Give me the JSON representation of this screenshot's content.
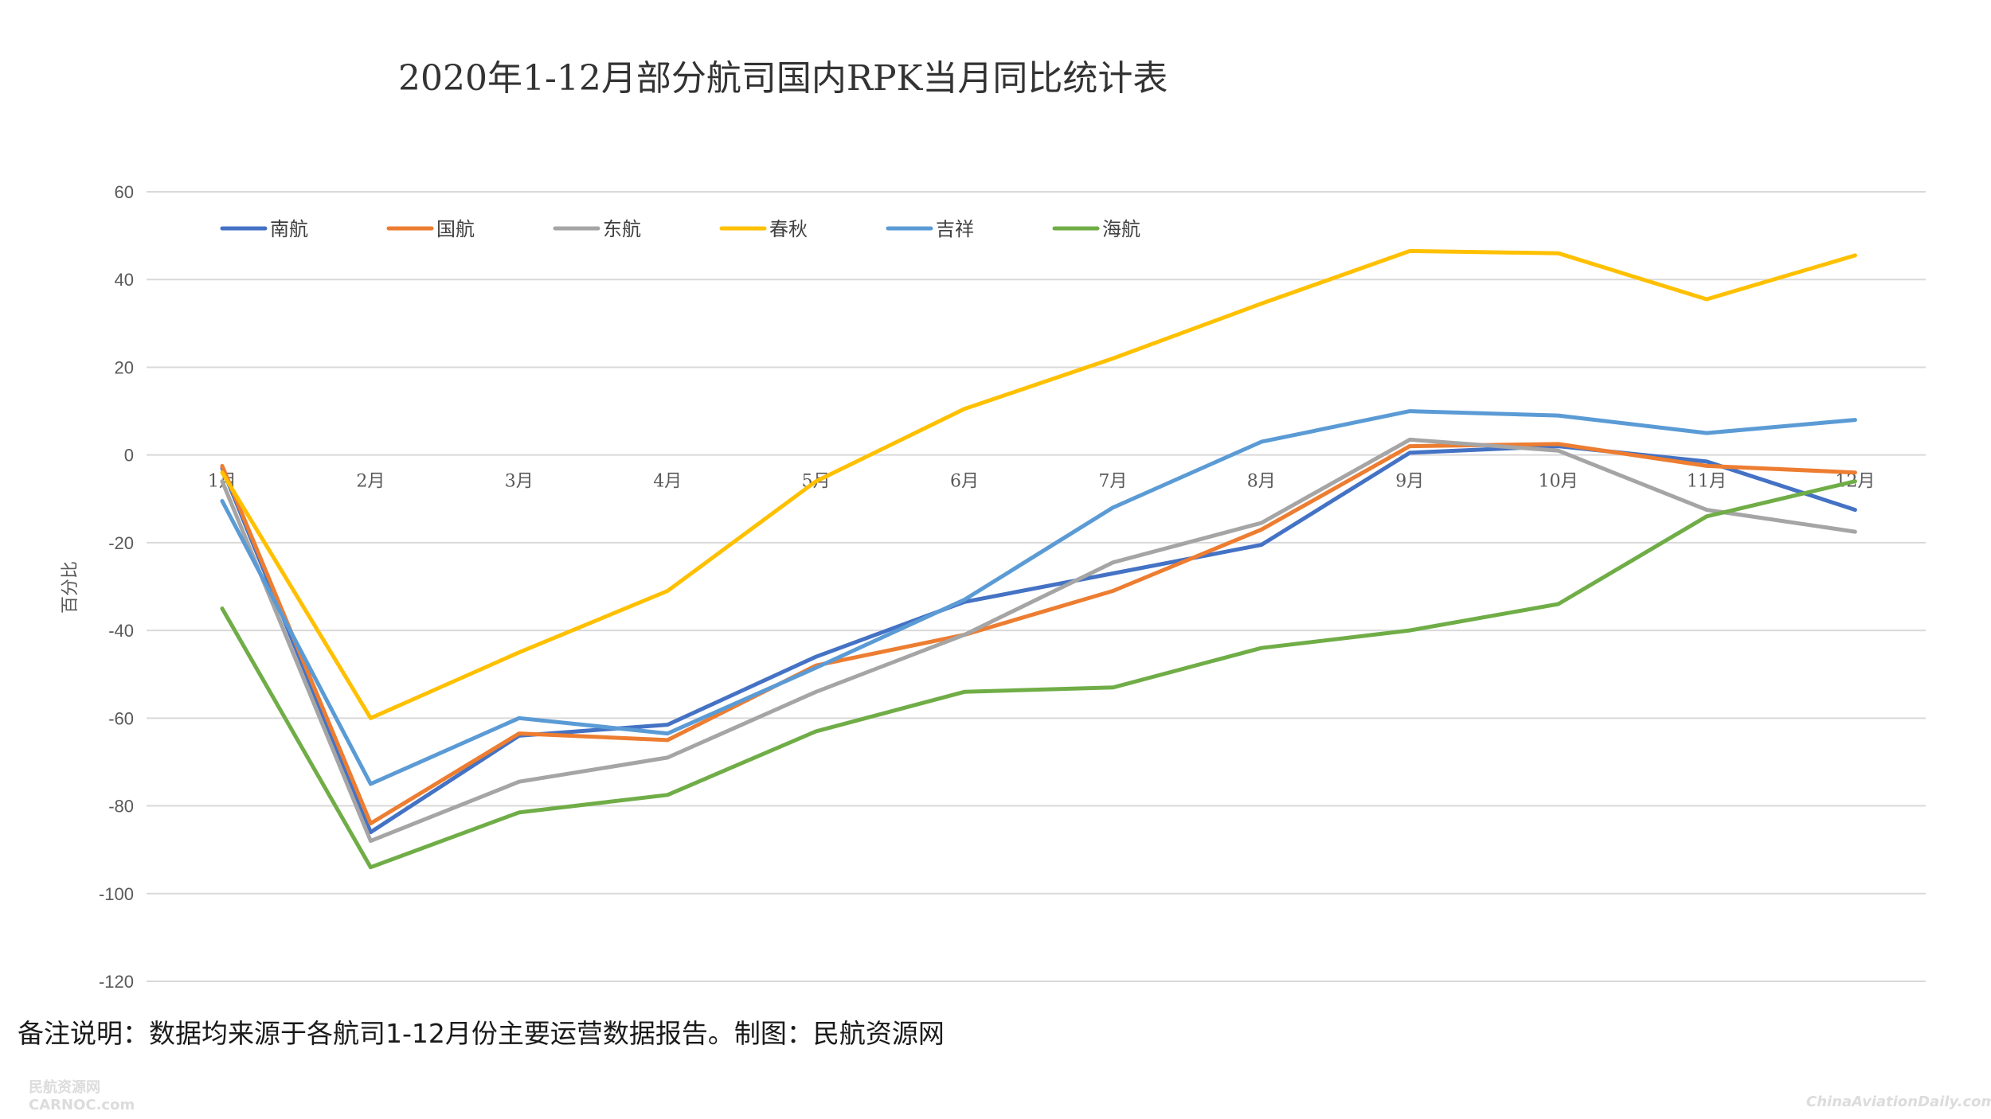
{
  "chart_data": {
    "type": "line",
    "title": "2020年1-12月部分航司国内RPK当月同比统计表",
    "xlabel": "",
    "ylabel": "百分比",
    "ylim": [
      -120,
      60
    ],
    "yticks": [
      60,
      40,
      20,
      0,
      -20,
      -40,
      -60,
      -80,
      -100,
      -120
    ],
    "grid": true,
    "legend_position": "top-left",
    "categories": [
      "1月",
      "2月",
      "3月",
      "4月",
      "5月",
      "6月",
      "7月",
      "8月",
      "9月",
      "10月",
      "11月",
      "12月"
    ],
    "series": [
      {
        "name": "南航",
        "color": "#4472C4",
        "values": [
          -3,
          -86,
          -64,
          -61.5,
          -46,
          -33.5,
          -27,
          -20.5,
          0.5,
          2,
          -1.5,
          -12.5
        ]
      },
      {
        "name": "国航",
        "color": "#ED7D31",
        "values": [
          -2.5,
          -84,
          -63.5,
          -65,
          -48,
          -41,
          -31,
          -17,
          2,
          2.5,
          -2.5,
          -4
        ]
      },
      {
        "name": "东航",
        "color": "#A5A5A5",
        "values": [
          -6,
          -88,
          -74.5,
          -69,
          -54,
          -41,
          -24.5,
          -15.5,
          3.5,
          1,
          -12.5,
          -17.5
        ]
      },
      {
        "name": "春秋",
        "color": "#FFC000",
        "values": [
          -4,
          -60,
          -45,
          -31,
          -6,
          10.5,
          22,
          34.5,
          46.5,
          46,
          35.5,
          45.5
        ]
      },
      {
        "name": "吉祥",
        "color": "#5B9BD5",
        "values": [
          -10.5,
          -75,
          -60,
          -63.5,
          -48.5,
          -33,
          -12,
          3,
          10,
          9,
          5,
          8
        ]
      },
      {
        "name": "海航",
        "color": "#70AD47",
        "values": [
          -35,
          -94,
          -81.5,
          -77.5,
          -63,
          -54,
          -53,
          -44,
          -40,
          -34,
          -14,
          -6
        ]
      }
    ]
  },
  "note": "备注说明：数据均来源于各航司1-12月份主要运营数据报告。制图：民航资源网",
  "watermark_left_line1": "民航资源网",
  "watermark_left_line2": "CARNOC.com",
  "watermark_right": "ChinaAviationDaily.com"
}
